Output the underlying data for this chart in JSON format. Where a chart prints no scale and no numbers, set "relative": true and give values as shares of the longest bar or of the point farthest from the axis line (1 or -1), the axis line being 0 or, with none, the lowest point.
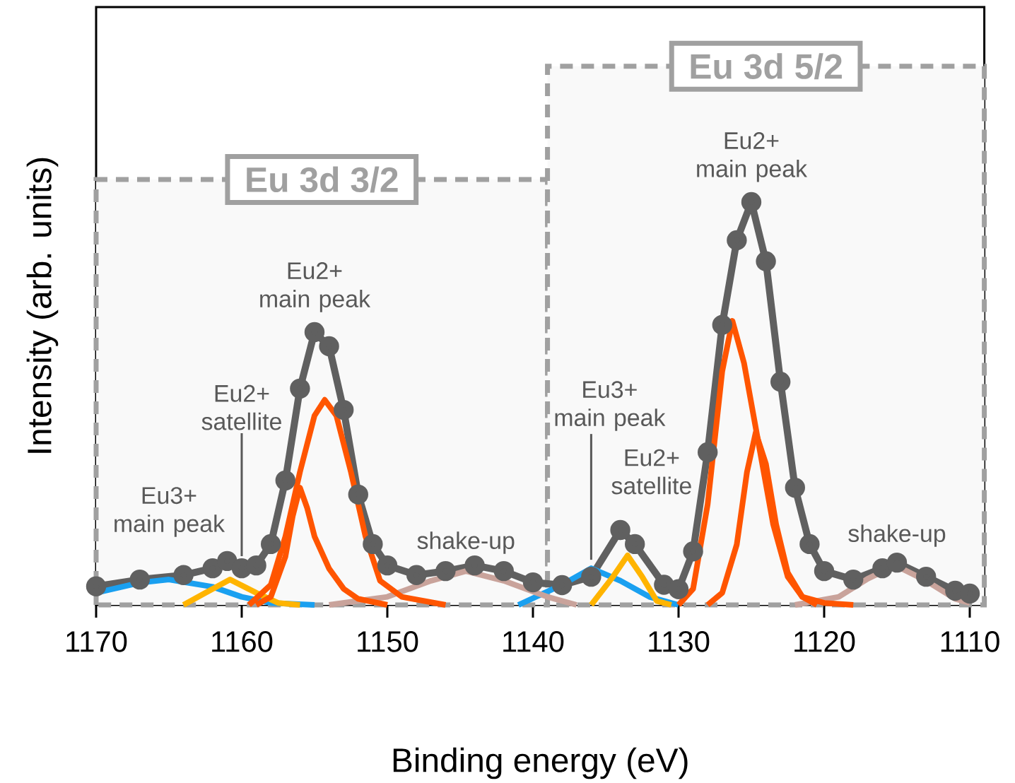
{
  "chart_data": {
    "type": "line",
    "relative": true,
    "xlabel": "Binding energy (eV)",
    "ylabel": "Intensity (arb. units)",
    "xlim": [
      1170,
      1109
    ],
    "xticks": [
      1170,
      1160,
      1150,
      1140,
      1130,
      1120,
      1110
    ],
    "series": [
      {
        "color": "#606060",
        "marker": "circle",
        "x": [
          1170,
          1167,
          1164,
          1162,
          1161,
          1160,
          1159,
          1158,
          1157,
          1156,
          1155,
          1154,
          1153,
          1152,
          1151,
          1150,
          1148,
          1146,
          1144,
          1142,
          1140,
          1138,
          1136,
          1134,
          1133,
          1131,
          1130,
          1129,
          1128,
          1127,
          1126,
          1125,
          1124,
          1123,
          1122,
          1121,
          1120,
          1118,
          1116,
          1115,
          1113,
          1111,
          1110
        ],
        "values": [
          0.046,
          0.063,
          0.074,
          0.091,
          0.109,
          0.091,
          0.098,
          0.151,
          0.309,
          0.537,
          0.677,
          0.642,
          0.484,
          0.274,
          0.151,
          0.098,
          0.074,
          0.084,
          0.098,
          0.084,
          0.056,
          0.049,
          0.07,
          0.186,
          0.151,
          0.05,
          0.039,
          0.133,
          0.379,
          0.695,
          0.905,
          1.0,
          0.853,
          0.554,
          0.291,
          0.151,
          0.084,
          0.063,
          0.091,
          0.105,
          0.07,
          0.035,
          0.028
        ]
      },
      {
        "color": "#1aa0f0",
        "x": [
          1170,
          1167,
          1165,
          1162,
          1160,
          1158,
          1155
        ],
        "values": [
          0.03,
          0.055,
          0.063,
          0.045,
          0.02,
          0.005,
          0
        ]
      },
      {
        "color": "#1aa0f0",
        "x": [
          1141,
          1138,
          1136,
          1134,
          1132,
          1130
        ],
        "values": [
          0,
          0.05,
          0.091,
          0.06,
          0.02,
          0
        ]
      },
      {
        "color": "#ffb400",
        "x": [
          1164,
          1162.5,
          1160.8,
          1159,
          1157.5,
          1156
        ],
        "values": [
          0,
          0.03,
          0.063,
          0.03,
          0.005,
          0
        ]
      },
      {
        "color": "#ffb400",
        "x": [
          1136,
          1134.5,
          1133.5,
          1132.5,
          1131.5,
          1130.5
        ],
        "values": [
          0,
          0.07,
          0.123,
          0.07,
          0.01,
          0
        ]
      },
      {
        "color": "#c9a39b",
        "x": [
          1154,
          1150,
          1147,
          1144.6,
          1142,
          1139,
          1137
        ],
        "values": [
          0,
          0.02,
          0.06,
          0.084,
          0.06,
          0.02,
          0
        ]
      },
      {
        "color": "#c9a39b",
        "x": [
          1122,
          1119,
          1117,
          1115.1,
          1113,
          1111,
          1110
        ],
        "values": [
          0,
          0.02,
          0.065,
          0.098,
          0.06,
          0.015,
          0.005
        ]
      },
      {
        "color": "#ff5500",
        "x": [
          1159.5,
          1158,
          1157,
          1156,
          1155,
          1154.3,
          1153.5,
          1152.5,
          1151.5,
          1150.5,
          1149,
          1146
        ],
        "values": [
          0,
          0.05,
          0.17,
          0.33,
          0.47,
          0.509,
          0.47,
          0.33,
          0.17,
          0.06,
          0.02,
          0
        ]
      },
      {
        "color": "#ff5500",
        "x": [
          1159,
          1158,
          1157,
          1156.5,
          1156,
          1155.5,
          1155,
          1154,
          1153,
          1152,
          1150
        ],
        "values": [
          0,
          0.02,
          0.12,
          0.22,
          0.291,
          0.24,
          0.17,
          0.09,
          0.04,
          0.015,
          0
        ]
      },
      {
        "color": "#ff5500",
        "x": [
          1130,
          1129,
          1128,
          1127,
          1126.3,
          1125.5,
          1124.5,
          1123.5,
          1122.5,
          1121.5,
          1120,
          1118
        ],
        "values": [
          0,
          0.04,
          0.25,
          0.58,
          0.705,
          0.6,
          0.4,
          0.2,
          0.07,
          0.02,
          0.005,
          0
        ]
      },
      {
        "color": "#ff5500",
        "x": [
          1128,
          1127,
          1126,
          1125.3,
          1124.7,
          1124,
          1123.3,
          1122.5,
          1121.5,
          1120.5
        ],
        "values": [
          0,
          0.03,
          0.15,
          0.33,
          0.428,
          0.35,
          0.2,
          0.08,
          0.02,
          0
        ]
      }
    ],
    "bands": [
      {
        "axis": "x",
        "from": 1170,
        "to": 1139,
        "label": "Eu 3d 3/2",
        "color": "#a0a0a0"
      },
      {
        "axis": "x",
        "from": 1139,
        "to": 1109,
        "label": "Eu 3d 5/2",
        "color": "#a0a0a0"
      }
    ],
    "annotations": [
      {
        "text": "Eu3+ main peak",
        "x": 1165,
        "y": 0.063
      },
      {
        "text": "Eu2+ satellite",
        "x": 1160,
        "y": 0.1
      },
      {
        "text": "Eu2+ main peak",
        "x": 1155,
        "y": 0.677
      },
      {
        "text": "shake-up",
        "x": 1144.6,
        "y": 0.084
      },
      {
        "text": "Eu3+ main peak",
        "x": 1136,
        "y": 0.091
      },
      {
        "text": "Eu2+ satellite",
        "x": 1133.5,
        "y": 0.123
      },
      {
        "text": "Eu2+ main peak",
        "x": 1125,
        "y": 1.0
      },
      {
        "text": "shake-up",
        "x": 1115,
        "y": 0.098
      }
    ]
  }
}
